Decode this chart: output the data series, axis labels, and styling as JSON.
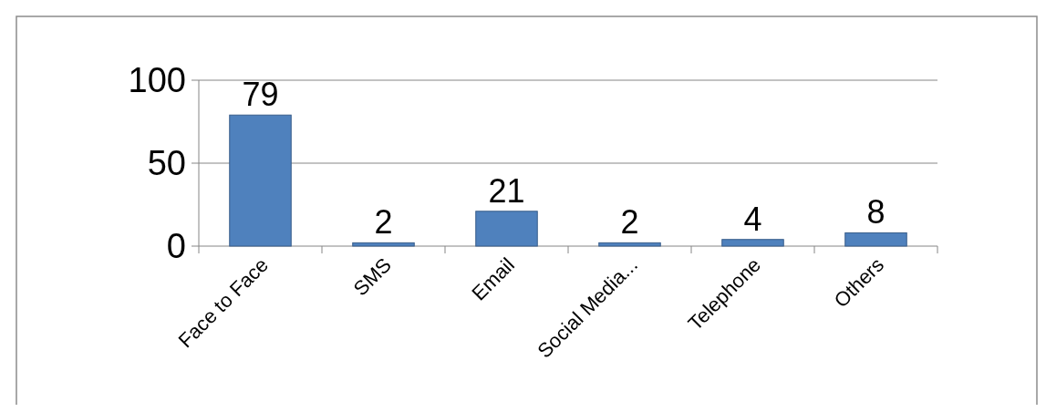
{
  "chart_data": {
    "type": "bar",
    "categories": [
      "Face to Face",
      "SMS",
      "Email",
      "Social Media...",
      "Telephone",
      "Others"
    ],
    "values": [
      79,
      2,
      21,
      2,
      4,
      8
    ],
    "color": "#4f81bd",
    "ylim": [
      0,
      100
    ],
    "yticks": [
      0,
      50,
      100
    ],
    "grid": "y",
    "data_labels": true
  }
}
